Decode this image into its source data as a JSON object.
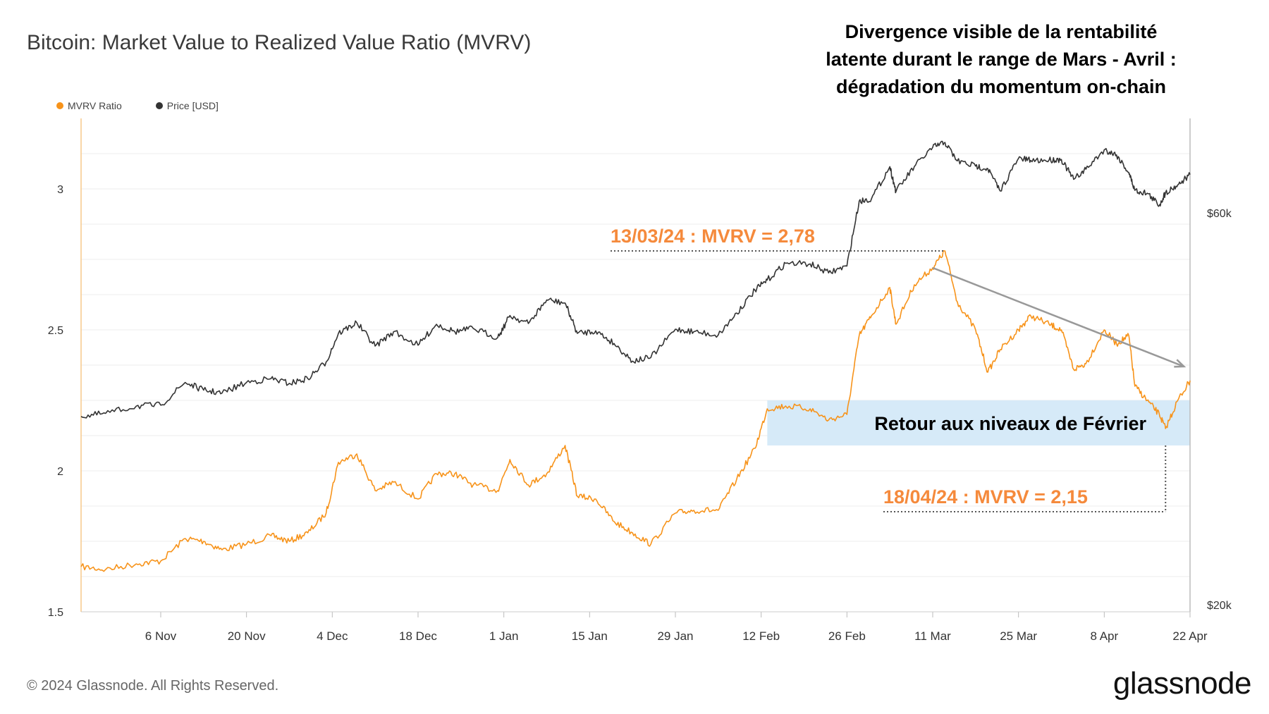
{
  "title": "Bitcoin: Market Value to Realized Value Ratio (MVRV)",
  "legend": [
    {
      "label": "MVRV Ratio",
      "color": "#f7931a"
    },
    {
      "label": "Price [USD]",
      "color": "#333333"
    }
  ],
  "annotations": {
    "top_lines": [
      "Divergence visible de la rentabilité",
      "latente durant le range de Mars - Avril :",
      "dégradation du momentum on-chain"
    ],
    "peak_label": "13/03/24 : MVRV = 2,78",
    "low_label": "18/04/24 : MVRV = 2,15",
    "box_label": "Retour aux niveaux de Février"
  },
  "footer": {
    "copyright": "© 2024 Glassnode. All Rights Reserved.",
    "logo": "glassnode"
  },
  "colors": {
    "mvrv": "#f7931a",
    "price": "#333333",
    "annotation": "#f58a3c",
    "box": "#d6eaf8",
    "trend": "#999999"
  },
  "chart_data": {
    "type": "line",
    "title": "Bitcoin: Market Value to Realized Value Ratio (MVRV)",
    "x_ticks": [
      "6 Nov",
      "20 Nov",
      "4 Dec",
      "18 Dec",
      "1 Jan",
      "15 Jan",
      "29 Jan",
      "12 Feb",
      "26 Feb",
      "11 Mar",
      "25 Mar",
      "8 Apr",
      "22 Apr"
    ],
    "x_range": [
      "2023-10-24",
      "2024-04-22"
    ],
    "y_left": {
      "label": "",
      "range": [
        1.5,
        3.25
      ],
      "ticks": [
        "1.5",
        "2",
        "2.5",
        "3"
      ]
    },
    "y_right": {
      "label": "",
      "ticks": [
        "$20k",
        "$60k"
      ],
      "scale": "log"
    },
    "grid": true,
    "legend_position": "top-left",
    "series": [
      {
        "name": "MVRV Ratio",
        "axis": "left",
        "points": [
          [
            "2023-10-24",
            1.66
          ],
          [
            "2023-10-28",
            1.65
          ],
          [
            "2023-11-02",
            1.67
          ],
          [
            "2023-11-06",
            1.68
          ],
          [
            "2023-11-10",
            1.76
          ],
          [
            "2023-11-13",
            1.75
          ],
          [
            "2023-11-16",
            1.72
          ],
          [
            "2023-11-20",
            1.74
          ],
          [
            "2023-11-24",
            1.77
          ],
          [
            "2023-11-27",
            1.75
          ],
          [
            "2023-11-30",
            1.78
          ],
          [
            "2023-12-03",
            1.85
          ],
          [
            "2023-12-05",
            2.03
          ],
          [
            "2023-12-08",
            2.06
          ],
          [
            "2023-12-11",
            1.93
          ],
          [
            "2023-12-14",
            1.96
          ],
          [
            "2023-12-18",
            1.9
          ],
          [
            "2023-12-21",
            1.99
          ],
          [
            "2023-12-24",
            1.99
          ],
          [
            "2023-12-27",
            1.95
          ],
          [
            "2023-12-31",
            1.93
          ],
          [
            "2024-01-02",
            2.04
          ],
          [
            "2024-01-05",
            1.95
          ],
          [
            "2024-01-08",
            1.99
          ],
          [
            "2024-01-11",
            2.09
          ],
          [
            "2024-01-13",
            1.91
          ],
          [
            "2024-01-16",
            1.9
          ],
          [
            "2024-01-19",
            1.82
          ],
          [
            "2024-01-22",
            1.78
          ],
          [
            "2024-01-25",
            1.74
          ],
          [
            "2024-01-29",
            1.85
          ],
          [
            "2024-02-01",
            1.86
          ],
          [
            "2024-02-05",
            1.86
          ],
          [
            "2024-02-08",
            1.97
          ],
          [
            "2024-02-11",
            2.08
          ],
          [
            "2024-02-13",
            2.22
          ],
          [
            "2024-02-16",
            2.23
          ],
          [
            "2024-02-20",
            2.22
          ],
          [
            "2024-02-23",
            2.18
          ],
          [
            "2024-02-26",
            2.2
          ],
          [
            "2024-02-28",
            2.48
          ],
          [
            "2024-03-01",
            2.55
          ],
          [
            "2024-03-04",
            2.65
          ],
          [
            "2024-03-05",
            2.52
          ],
          [
            "2024-03-08",
            2.66
          ],
          [
            "2024-03-11",
            2.72
          ],
          [
            "2024-03-13",
            2.78
          ],
          [
            "2024-03-15",
            2.6
          ],
          [
            "2024-03-18",
            2.5
          ],
          [
            "2024-03-20",
            2.35
          ],
          [
            "2024-03-22",
            2.43
          ],
          [
            "2024-03-25",
            2.5
          ],
          [
            "2024-03-27",
            2.55
          ],
          [
            "2024-03-30",
            2.52
          ],
          [
            "2024-04-01",
            2.5
          ],
          [
            "2024-04-03",
            2.36
          ],
          [
            "2024-04-05",
            2.38
          ],
          [
            "2024-04-08",
            2.5
          ],
          [
            "2024-04-10",
            2.45
          ],
          [
            "2024-04-12",
            2.48
          ],
          [
            "2024-04-13",
            2.3
          ],
          [
            "2024-04-15",
            2.25
          ],
          [
            "2024-04-17",
            2.2
          ],
          [
            "2024-04-18",
            2.15
          ],
          [
            "2024-04-20",
            2.25
          ],
          [
            "2024-04-22",
            2.32
          ]
        ]
      },
      {
        "name": "Price [USD]",
        "axis": "right",
        "points": [
          [
            "2023-10-24",
            33900
          ],
          [
            "2023-10-28",
            34200
          ],
          [
            "2023-11-02",
            34900
          ],
          [
            "2023-11-06",
            35000
          ],
          [
            "2023-11-10",
            37300
          ],
          [
            "2023-11-13",
            36500
          ],
          [
            "2023-11-16",
            36200
          ],
          [
            "2023-11-20",
            37300
          ],
          [
            "2023-11-24",
            37700
          ],
          [
            "2023-11-27",
            37200
          ],
          [
            "2023-11-30",
            37700
          ],
          [
            "2023-12-03",
            39500
          ],
          [
            "2023-12-05",
            42800
          ],
          [
            "2023-12-08",
            44100
          ],
          [
            "2023-12-11",
            41300
          ],
          [
            "2023-12-14",
            43000
          ],
          [
            "2023-12-18",
            41400
          ],
          [
            "2023-12-21",
            43900
          ],
          [
            "2023-12-24",
            43000
          ],
          [
            "2023-12-27",
            43400
          ],
          [
            "2023-12-31",
            42300
          ],
          [
            "2024-01-02",
            45000
          ],
          [
            "2024-01-05",
            44000
          ],
          [
            "2024-01-08",
            47000
          ],
          [
            "2024-01-11",
            46600
          ],
          [
            "2024-01-13",
            42800
          ],
          [
            "2024-01-16",
            43100
          ],
          [
            "2024-01-19",
            41600
          ],
          [
            "2024-01-22",
            39600
          ],
          [
            "2024-01-25",
            40000
          ],
          [
            "2024-01-29",
            43300
          ],
          [
            "2024-02-01",
            43000
          ],
          [
            "2024-02-05",
            42600
          ],
          [
            "2024-02-08",
            45300
          ],
          [
            "2024-02-11",
            48300
          ],
          [
            "2024-02-13",
            49700
          ],
          [
            "2024-02-16",
            52100
          ],
          [
            "2024-02-20",
            52000
          ],
          [
            "2024-02-23",
            50700
          ],
          [
            "2024-02-26",
            51700
          ],
          [
            "2024-02-28",
            62000
          ],
          [
            "2024-03-01",
            62400
          ],
          [
            "2024-03-04",
            68300
          ],
          [
            "2024-03-05",
            63700
          ],
          [
            "2024-03-08",
            68300
          ],
          [
            "2024-03-11",
            72100
          ],
          [
            "2024-03-13",
            73100
          ],
          [
            "2024-03-15",
            69400
          ],
          [
            "2024-03-18",
            68400
          ],
          [
            "2024-03-20",
            67900
          ],
          [
            "2024-03-22",
            63800
          ],
          [
            "2024-03-25",
            69900
          ],
          [
            "2024-03-27",
            69500
          ],
          [
            "2024-03-30",
            69600
          ],
          [
            "2024-04-01",
            69700
          ],
          [
            "2024-04-03",
            65900
          ],
          [
            "2024-04-05",
            67800
          ],
          [
            "2024-04-08",
            71600
          ],
          [
            "2024-04-10",
            70600
          ],
          [
            "2024-04-12",
            67200
          ],
          [
            "2024-04-13",
            63900
          ],
          [
            "2024-04-15",
            63400
          ],
          [
            "2024-04-17",
            61300
          ],
          [
            "2024-04-18",
            63500
          ],
          [
            "2024-04-20",
            64900
          ],
          [
            "2024-04-22",
            66800
          ]
        ]
      }
    ],
    "annotations": [
      {
        "text": "13/03/24 : MVRV = 2,78",
        "date": "2024-03-13",
        "value": 2.78
      },
      {
        "text": "18/04/24 : MVRV = 2,15",
        "date": "2024-04-18",
        "value": 2.15
      },
      {
        "text": "Retour aux niveaux de Février",
        "date_from": "2024-02-13",
        "date_to": "2024-04-22",
        "value_from": 2.09,
        "value_to": 2.25
      },
      {
        "text": "",
        "type": "trend-arrow",
        "from": [
          "2024-03-11",
          2.72
        ],
        "to": [
          "2024-04-21",
          2.37
        ]
      }
    ]
  }
}
